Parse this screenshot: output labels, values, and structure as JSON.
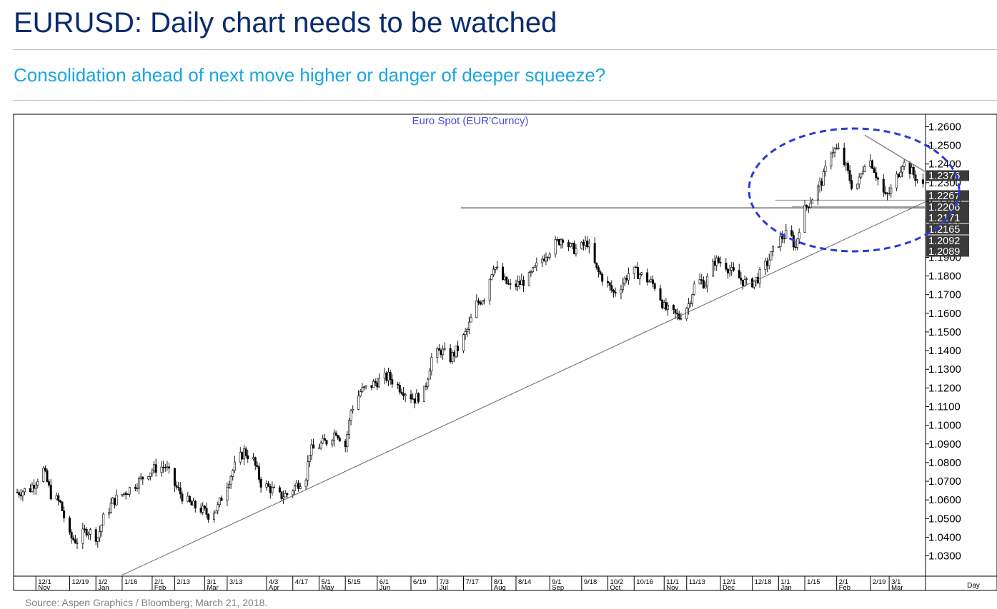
{
  "header": {
    "title": "EURUSD: Daily chart needs to be watched",
    "subtitle": "Consolidation ahead of next move higher or danger of deeper squeeze?"
  },
  "source": "Source: Aspen Graphics / Bloomberg; March 21, 2018.",
  "colors": {
    "title": "#0a2b6e",
    "subtitle": "#1aa6e0",
    "chart_title": "#4a4adf",
    "ellipse": "#2a3ad6",
    "price_box": "#3a3a3a",
    "candles": "#000000"
  },
  "chart_data": {
    "type": "candlestick",
    "title": "Euro  Spot  (EUR'Curncy)",
    "x_unit_label": "Day",
    "y_ticks": [
      1.26,
      1.25,
      1.24,
      1.23,
      1.22,
      1.21,
      1.2,
      1.19,
      1.18,
      1.17,
      1.16,
      1.15,
      1.14,
      1.13,
      1.12,
      1.11,
      1.1,
      1.09,
      1.08,
      1.07,
      1.06,
      1.05,
      1.04,
      1.03
    ],
    "y_tick_labels": [
      "1.2600",
      "1.2500",
      "1.2400",
      "1.2300",
      "1.2200",
      "1.2100",
      "1.2000",
      "1.1900",
      "1.1800",
      "1.1700",
      "1.1600",
      "1.1500",
      "1.1400",
      "1.1300",
      "1.1200",
      "1.1100",
      "1.1000",
      "1.0900",
      "1.0800",
      "1.0700",
      "1.0600",
      "1.0500",
      "1.0400",
      "1.0300"
    ],
    "ylim": [
      1.0195,
      1.2663
    ],
    "x_ticks": [
      "12/1",
      "12/19",
      "1/2",
      "1/16",
      "2/1",
      "2/13",
      "3/1",
      "3/13",
      "4/3",
      "4/17",
      "5/1",
      "5/15",
      "6/1",
      "6/19",
      "7/3",
      "7/17",
      "8/1",
      "8/14",
      "9/1",
      "9/18",
      "10/2",
      "10/16",
      "11/1",
      "11/13",
      "12/1",
      "12/18",
      "1/1",
      "1/15",
      "2/1",
      "2/19",
      "3/1"
    ],
    "month_labels": [
      "Nov",
      "Jan",
      "Feb",
      "Mar",
      "Apr",
      "May",
      "Jun",
      "Jul",
      "Aug",
      "Sep",
      "Oct",
      "Nov",
      "Dec",
      "Jan",
      "Feb",
      "Mar"
    ],
    "price_labels": [
      {
        "label": "1.2376",
        "value": 1.2376
      },
      {
        "label": "1.2267",
        "value": 1.2267
      },
      {
        "label": "1.2206",
        "value": 1.2206
      },
      {
        "label": "1.2171",
        "value": 1.2171
      },
      {
        "label": "1.2165",
        "value": 1.2165
      },
      {
        "label": "1.2092",
        "value": 1.2092
      },
      {
        "label": "1.2089",
        "value": 1.2089
      }
    ],
    "horizontal_levels": [
      1.2165,
      1.2206,
      1.2171
    ],
    "trendline": {
      "from": {
        "date": "1/16",
        "value": 1.0197
      },
      "to": {
        "date": "3/20",
        "value": 1.2196
      }
    },
    "resistance_line": {
      "from": {
        "date": "2/16",
        "value": 1.2555
      },
      "to": {
        "date": "3/20",
        "value": 1.236
      }
    },
    "close_path": [
      [
        "11/21",
        1.064
      ],
      [
        "11/28",
        1.066
      ],
      [
        "12/5",
        1.076
      ],
      [
        "12/9",
        1.063
      ],
      [
        "12/14",
        1.058
      ],
      [
        "12/19",
        1.04
      ],
      [
        "12/23",
        1.038
      ],
      [
        "12/28",
        1.044
      ],
      [
        "1/3",
        1.04
      ],
      [
        "1/6",
        1.05
      ],
      [
        "1/11",
        1.059
      ],
      [
        "1/16",
        1.063
      ],
      [
        "1/20",
        1.066
      ],
      [
        "1/25",
        1.07
      ],
      [
        "1/30",
        1.075
      ],
      [
        "2/3",
        1.077
      ],
      [
        "2/8",
        1.078
      ],
      [
        "2/13",
        1.068
      ],
      [
        "2/17",
        1.062
      ],
      [
        "2/22",
        1.057
      ],
      [
        "2/27",
        1.055
      ],
      [
        "3/3",
        1.052
      ],
      [
        "3/8",
        1.056
      ],
      [
        "3/13",
        1.069
      ],
      [
        "3/17",
        1.078
      ],
      [
        "3/22",
        1.086
      ],
      [
        "3/27",
        1.081
      ],
      [
        "3/31",
        1.069
      ],
      [
        "4/5",
        1.066
      ],
      [
        "4/10",
        1.062
      ],
      [
        "4/14",
        1.063
      ],
      [
        "4/19",
        1.068
      ],
      [
        "4/24",
        1.073
      ],
      [
        "4/26",
        1.086
      ],
      [
        "5/1",
        1.089
      ],
      [
        "5/6",
        1.092
      ],
      [
        "5/10",
        1.097
      ],
      [
        "5/15",
        1.089
      ],
      [
        "5/18",
        1.108
      ],
      [
        "5/23",
        1.118
      ],
      [
        "5/28",
        1.121
      ],
      [
        "6/2",
        1.124
      ],
      [
        "6/7",
        1.126
      ],
      [
        "6/12",
        1.121
      ],
      [
        "6/16",
        1.118
      ],
      [
        "6/21",
        1.114
      ],
      [
        "6/26",
        1.118
      ],
      [
        "6/30",
        1.136
      ],
      [
        "7/5",
        1.14
      ],
      [
        "7/10",
        1.136
      ],
      [
        "7/14",
        1.141
      ],
      [
        "7/19",
        1.151
      ],
      [
        "7/24",
        1.165
      ],
      [
        "7/28",
        1.169
      ],
      [
        "8/2",
        1.186
      ],
      [
        "8/7",
        1.178
      ],
      [
        "8/11",
        1.174
      ],
      [
        "8/16",
        1.176
      ],
      [
        "8/21",
        1.179
      ],
      [
        "8/25",
        1.185
      ],
      [
        "8/30",
        1.192
      ],
      [
        "9/3",
        1.196
      ],
      [
        "9/8",
        1.201
      ],
      [
        "9/12",
        1.195
      ],
      [
        "9/16",
        1.194
      ],
      [
        "9/21",
        1.198
      ],
      [
        "9/26",
        1.183
      ],
      [
        "9/30",
        1.178
      ],
      [
        "10/5",
        1.171
      ],
      [
        "10/9",
        1.175
      ],
      [
        "10/14",
        1.183
      ],
      [
        "10/19",
        1.181
      ],
      [
        "10/23",
        1.178
      ],
      [
        "10/28",
        1.174
      ],
      [
        "11/1",
        1.163
      ],
      [
        "11/5",
        1.16
      ],
      [
        "11/9",
        1.158
      ],
      [
        "11/14",
        1.165
      ],
      [
        "11/18",
        1.178
      ],
      [
        "11/23",
        1.176
      ],
      [
        "11/28",
        1.188
      ],
      [
        "12/3",
        1.187
      ],
      [
        "12/7",
        1.182
      ],
      [
        "12/12",
        1.178
      ],
      [
        "12/16",
        1.175
      ],
      [
        "12/21",
        1.179
      ],
      [
        "12/26",
        1.187
      ],
      [
        "12/30",
        1.195
      ],
      [
        "1/3",
        1.201
      ],
      [
        "1/7",
        1.203
      ],
      [
        "1/10",
        1.195
      ],
      [
        "1/13",
        1.212
      ],
      [
        "1/17",
        1.219
      ],
      [
        "1/21",
        1.225
      ],
      [
        "1/25",
        1.233
      ],
      [
        "1/29",
        1.248
      ],
      [
        "2/2",
        1.247
      ],
      [
        "2/6",
        1.238
      ],
      [
        "2/10",
        1.226
      ],
      [
        "2/13",
        1.231
      ],
      [
        "2/17",
        1.245
      ],
      [
        "2/20",
        1.24
      ],
      [
        "2/24",
        1.229
      ],
      [
        "2/27",
        1.222
      ],
      [
        "3/2",
        1.226
      ],
      [
        "3/5",
        1.233
      ],
      [
        "3/8",
        1.241
      ],
      [
        "3/12",
        1.237
      ],
      [
        "3/15",
        1.233
      ],
      [
        "3/18",
        1.229
      ],
      [
        "3/20",
        1.2267
      ]
    ]
  }
}
